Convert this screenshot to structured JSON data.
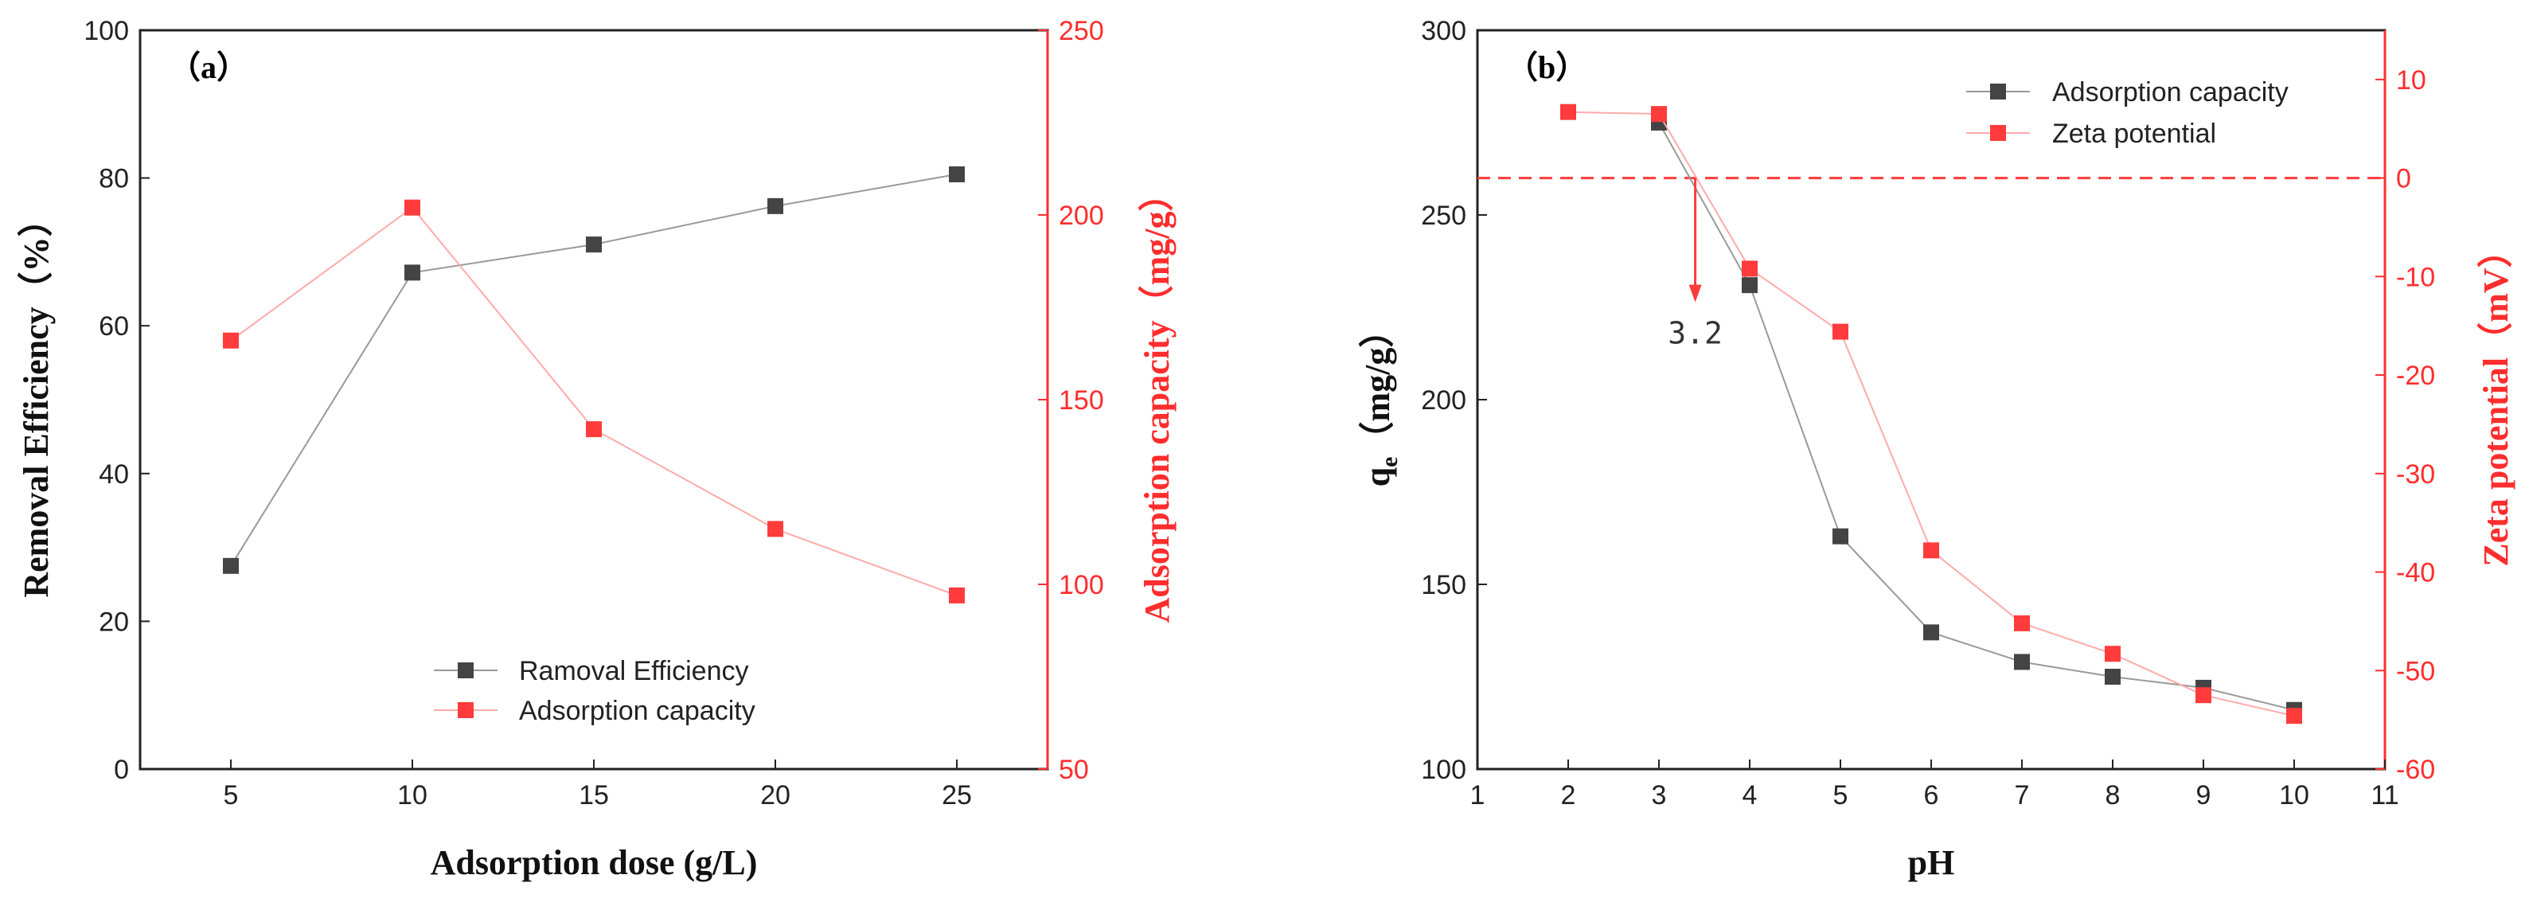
{
  "colors": {
    "black_series": "#444444",
    "red_series": "#ff3b3b",
    "red_axis": "#ff2d2d",
    "axis": "#222222"
  },
  "chart_data": [
    {
      "type": "line",
      "panel_label": "（a）",
      "xlabel": "Adsorption dose (g/L)",
      "ylabel_left": "Removal Efficiency（%）",
      "ylabel_right": "Adsorption capacity（mg/g）",
      "x": [
        5,
        10,
        15,
        20,
        25
      ],
      "xlim": [
        2.5,
        27.5
      ],
      "xticks": [
        5,
        10,
        15,
        20,
        25
      ],
      "ylim_left": [
        0,
        100
      ],
      "yticks_left": [
        0,
        20,
        40,
        60,
        80,
        100
      ],
      "ylim_right": [
        50,
        250
      ],
      "yticks_right": [
        50,
        100,
        150,
        200,
        250
      ],
      "legend_position": "bottom-right",
      "series": [
        {
          "name": "Ramoval Efficiency",
          "axis": "left",
          "color": "#444444",
          "values": [
            27.5,
            67.2,
            71.0,
            76.2,
            80.5
          ]
        },
        {
          "name": "Adsorption capacity",
          "axis": "right",
          "color": "#ff3b3b",
          "values": [
            166,
            202,
            142,
            115,
            97
          ]
        }
      ]
    },
    {
      "type": "line",
      "panel_label": "（b）",
      "xlabel": "pH",
      "ylabel_left": "q",
      "ylabel_left_sub": "e",
      "ylabel_left_unit": "（mg/g）",
      "ylabel_right": "Zeta potential（mV）",
      "x": [
        2,
        3,
        4,
        5,
        6,
        7,
        8,
        9,
        10
      ],
      "xlim": [
        1,
        11
      ],
      "xticks": [
        1,
        2,
        3,
        4,
        5,
        6,
        7,
        8,
        9,
        10,
        11
      ],
      "ylim_left": [
        100,
        300
      ],
      "yticks_left": [
        100,
        150,
        200,
        250,
        300
      ],
      "ylim_right": [
        -60,
        15
      ],
      "yticks_right": [
        -60,
        -50,
        -40,
        -30,
        -20,
        -10,
        0,
        10
      ],
      "legend_position": "top-right",
      "zero_line_value": 0,
      "annotation": {
        "text": "3.2",
        "x": 3.4
      },
      "series": [
        {
          "name": "Adsorption capacity",
          "axis": "left",
          "color": "#444444",
          "x": [
            3,
            4,
            5,
            6,
            7,
            8,
            9,
            10
          ],
          "values": [
            275,
            231,
            163,
            137,
            129,
            125,
            122,
            116
          ]
        },
        {
          "name": "Zeta potential",
          "axis": "right",
          "color": "#ff3b3b",
          "x": [
            2,
            3,
            4,
            5,
            6,
            7,
            8,
            9,
            10
          ],
          "values": [
            6.7,
            6.5,
            -9.2,
            -15.6,
            -37.8,
            -45.2,
            -48.3,
            -52.5,
            -54.6
          ]
        }
      ]
    }
  ]
}
